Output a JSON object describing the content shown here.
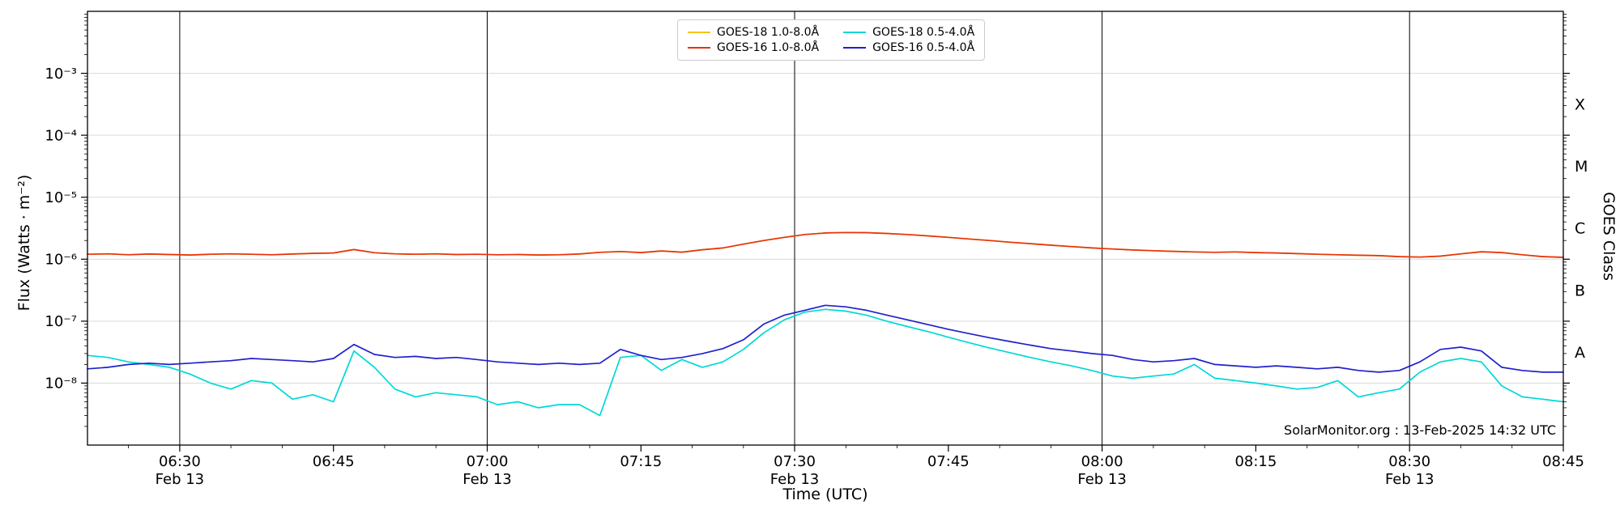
{
  "chart_data": {
    "type": "line",
    "title": "",
    "xlabel": "Time (UTC)",
    "ylabel": "Flux (Watts · m⁻²)",
    "ylabel_right": "GOES Class",
    "watermark": "SolarMonitor.org : 13-Feb-2025 14:32 UTC",
    "y_scale": "log",
    "y_domain_exponents": [
      -2,
      -9
    ],
    "y_tick_exponents": [
      -3,
      -4,
      -5,
      -6,
      -7,
      -8
    ],
    "y_tick_labels": [
      "10⁻³",
      "10⁻⁴",
      "10⁻⁵",
      "10⁻⁶",
      "10⁻⁷",
      "10⁻⁸"
    ],
    "goes_classes": [
      {
        "label": "X",
        "exponent_center": -3.5
      },
      {
        "label": "M",
        "exponent_center": -4.5
      },
      {
        "label": "C",
        "exponent_center": -5.5
      },
      {
        "label": "B",
        "exponent_center": -6.5
      },
      {
        "label": "A",
        "exponent_center": -7.5
      }
    ],
    "x_domain_minutes": [
      21,
      165
    ],
    "x_minor_tick_step_minutes": 5,
    "x_major_ticks": [
      {
        "t": 30,
        "label": "06:30",
        "sub": "Feb 13"
      },
      {
        "t": 45,
        "label": "06:45",
        "sub": ""
      },
      {
        "t": 60,
        "label": "07:00",
        "sub": "Feb 13"
      },
      {
        "t": 75,
        "label": "07:15",
        "sub": ""
      },
      {
        "t": 90,
        "label": "07:30",
        "sub": "Feb 13"
      },
      {
        "t": 105,
        "label": "07:45",
        "sub": ""
      },
      {
        "t": 120,
        "label": "08:00",
        "sub": "Feb 13"
      },
      {
        "t": 135,
        "label": "08:15",
        "sub": ""
      },
      {
        "t": 150,
        "label": "08:30",
        "sub": "Feb 13"
      },
      {
        "t": 165,
        "label": "08:45",
        "sub": ""
      }
    ],
    "vertical_lines_t": [
      30,
      60,
      90,
      120,
      150
    ],
    "grid_color": "#d9d9d9",
    "axis_color": "#000000",
    "legend": {
      "position": "upper center",
      "columns": 2
    },
    "t_minutes": [
      21,
      23,
      25,
      27,
      29,
      31,
      33,
      35,
      37,
      39,
      41,
      43,
      45,
      47,
      49,
      51,
      53,
      55,
      57,
      59,
      61,
      63,
      65,
      67,
      69,
      71,
      73,
      75,
      77,
      79,
      81,
      83,
      85,
      87,
      89,
      91,
      93,
      95,
      97,
      99,
      101,
      103,
      105,
      107,
      109,
      111,
      113,
      115,
      117,
      119,
      121,
      123,
      125,
      127,
      129,
      131,
      133,
      135,
      137,
      139,
      141,
      143,
      145,
      147,
      149,
      151,
      153,
      155,
      157,
      159,
      161,
      163,
      165
    ],
    "series": [
      {
        "id": "goes18_long",
        "name": "GOES-18 1.0-8.0Å",
        "color": "#f5c400",
        "flux": [
          1.2e-06,
          1.22e-06,
          1.18e-06,
          1.21e-06,
          1.19e-06,
          1.17e-06,
          1.2e-06,
          1.22e-06,
          1.2e-06,
          1.18e-06,
          1.21e-06,
          1.24e-06,
          1.26e-06,
          1.43e-06,
          1.27e-06,
          1.22e-06,
          1.2e-06,
          1.22e-06,
          1.19e-06,
          1.2e-06,
          1.18e-06,
          1.19e-06,
          1.17e-06,
          1.18e-06,
          1.21e-06,
          1.29e-06,
          1.33e-06,
          1.28e-06,
          1.36e-06,
          1.3e-06,
          1.42e-06,
          1.52e-06,
          1.75e-06,
          2e-06,
          2.25e-06,
          2.5e-06,
          2.65e-06,
          2.7e-06,
          2.68e-06,
          2.6e-06,
          2.5e-06,
          2.38e-06,
          2.25e-06,
          2.12e-06,
          2e-06,
          1.88e-06,
          1.78e-06,
          1.68e-06,
          1.6e-06,
          1.52e-06,
          1.46e-06,
          1.41e-06,
          1.37e-06,
          1.34e-06,
          1.31e-06,
          1.29e-06,
          1.31e-06,
          1.28e-06,
          1.26e-06,
          1.23e-06,
          1.2e-06,
          1.18e-06,
          1.16e-06,
          1.14e-06,
          1.1e-06,
          1.08e-06,
          1.12e-06,
          1.22e-06,
          1.32e-06,
          1.28e-06,
          1.18e-06,
          1.1e-06,
          1.07e-06
        ]
      },
      {
        "id": "goes16_long",
        "name": "GOES-16 1.0-8.0Å",
        "color": "#e7320e",
        "flux": [
          1.2e-06,
          1.22e-06,
          1.18e-06,
          1.21e-06,
          1.19e-06,
          1.17e-06,
          1.2e-06,
          1.22e-06,
          1.2e-06,
          1.18e-06,
          1.21e-06,
          1.24e-06,
          1.26e-06,
          1.43e-06,
          1.27e-06,
          1.22e-06,
          1.2e-06,
          1.22e-06,
          1.19e-06,
          1.2e-06,
          1.18e-06,
          1.19e-06,
          1.17e-06,
          1.18e-06,
          1.21e-06,
          1.29e-06,
          1.33e-06,
          1.28e-06,
          1.36e-06,
          1.3e-06,
          1.42e-06,
          1.52e-06,
          1.75e-06,
          2e-06,
          2.25e-06,
          2.5e-06,
          2.65e-06,
          2.7e-06,
          2.68e-06,
          2.6e-06,
          2.5e-06,
          2.38e-06,
          2.25e-06,
          2.12e-06,
          2e-06,
          1.88e-06,
          1.78e-06,
          1.68e-06,
          1.6e-06,
          1.52e-06,
          1.46e-06,
          1.41e-06,
          1.37e-06,
          1.34e-06,
          1.31e-06,
          1.29e-06,
          1.31e-06,
          1.28e-06,
          1.26e-06,
          1.23e-06,
          1.2e-06,
          1.18e-06,
          1.16e-06,
          1.14e-06,
          1.1e-06,
          1.08e-06,
          1.12e-06,
          1.22e-06,
          1.32e-06,
          1.28e-06,
          1.18e-06,
          1.1e-06,
          1.07e-06
        ]
      },
      {
        "id": "goes18_short",
        "name": "GOES-18 0.5-4.0Å",
        "color": "#00d8d8",
        "flux": [
          2.8e-08,
          2.6e-08,
          2.2e-08,
          2e-08,
          1.8e-08,
          1.4e-08,
          1e-08,
          8e-09,
          1.1e-08,
          1e-08,
          5.5e-09,
          6.5e-09,
          5e-09,
          3.3e-08,
          1.8e-08,
          8e-09,
          6e-09,
          7e-09,
          6.5e-09,
          6e-09,
          4.5e-09,
          5e-09,
          4e-09,
          4.5e-09,
          4.5e-09,
          3e-09,
          2.6e-08,
          2.8e-08,
          1.6e-08,
          2.4e-08,
          1.8e-08,
          2.2e-08,
          3.5e-08,
          6.5e-08,
          1.05e-07,
          1.4e-07,
          1.55e-07,
          1.45e-07,
          1.25e-07,
          1e-07,
          8.2e-08,
          6.8e-08,
          5.5e-08,
          4.5e-08,
          3.7e-08,
          3.1e-08,
          2.6e-08,
          2.2e-08,
          1.9e-08,
          1.6e-08,
          1.3e-08,
          1.2e-08,
          1.3e-08,
          1.4e-08,
          2e-08,
          1.2e-08,
          1.1e-08,
          1e-08,
          9e-09,
          8e-09,
          8.5e-09,
          1.1e-08,
          6e-09,
          7e-09,
          8e-09,
          1.5e-08,
          2.2e-08,
          2.5e-08,
          2.2e-08,
          9e-09,
          6e-09,
          5.5e-09,
          5e-09
        ]
      },
      {
        "id": "goes16_short",
        "name": "GOES-16 0.5-4.0Å",
        "color": "#2020cd",
        "flux": [
          1.7e-08,
          1.8e-08,
          2e-08,
          2.1e-08,
          2e-08,
          2.1e-08,
          2.2e-08,
          2.3e-08,
          2.5e-08,
          2.4e-08,
          2.3e-08,
          2.2e-08,
          2.5e-08,
          4.2e-08,
          2.9e-08,
          2.6e-08,
          2.7e-08,
          2.5e-08,
          2.6e-08,
          2.4e-08,
          2.2e-08,
          2.1e-08,
          2e-08,
          2.1e-08,
          2e-08,
          2.1e-08,
          3.5e-08,
          2.8e-08,
          2.4e-08,
          2.6e-08,
          3e-08,
          3.6e-08,
          5e-08,
          9e-08,
          1.25e-07,
          1.5e-07,
          1.8e-07,
          1.7e-07,
          1.5e-07,
          1.25e-07,
          1.05e-07,
          8.8e-08,
          7.4e-08,
          6.3e-08,
          5.4e-08,
          4.7e-08,
          4.1e-08,
          3.6e-08,
          3.3e-08,
          3e-08,
          2.8e-08,
          2.4e-08,
          2.2e-08,
          2.3e-08,
          2.5e-08,
          2e-08,
          1.9e-08,
          1.8e-08,
          1.9e-08,
          1.8e-08,
          1.7e-08,
          1.8e-08,
          1.6e-08,
          1.5e-08,
          1.6e-08,
          2.2e-08,
          3.5e-08,
          3.8e-08,
          3.3e-08,
          1.8e-08,
          1.6e-08,
          1.5e-08,
          1.5e-08
        ]
      }
    ]
  }
}
